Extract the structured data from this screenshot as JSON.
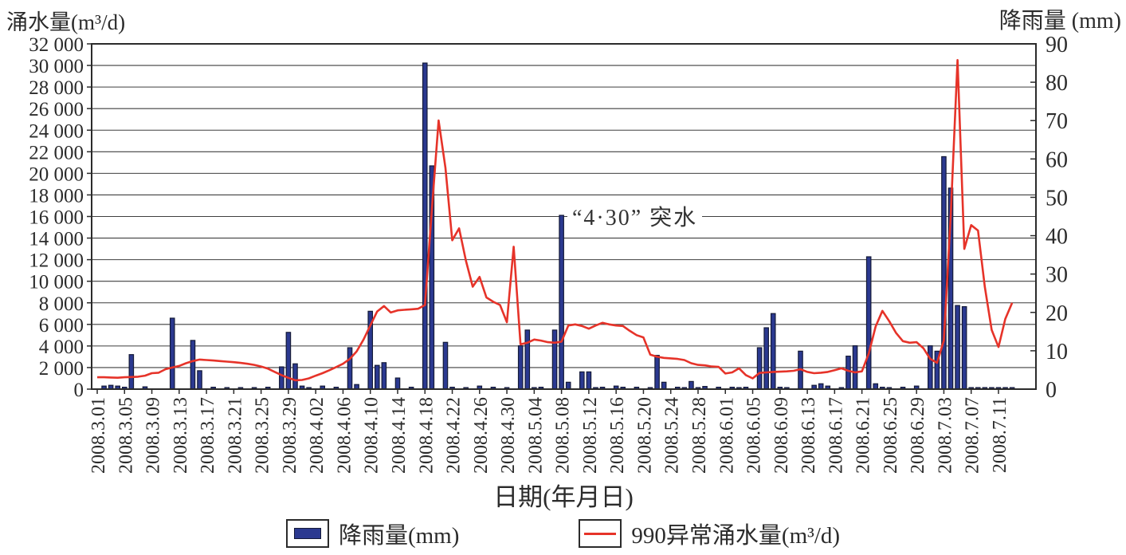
{
  "titles": {
    "left_axis": "涌水量(m³/d)",
    "right_axis": "降雨量 (mm)",
    "x_axis": "日期(年月日)"
  },
  "annotation": "“4·30” 突水",
  "legend": {
    "items": [
      {
        "label": "降雨量(mm)",
        "type": "bar",
        "color": "#2b3990"
      },
      {
        "label": "990异常涌水量(m³/d)",
        "type": "line",
        "color": "#e63329"
      }
    ]
  },
  "colors": {
    "bar_fill": "#2b3990",
    "bar_stroke": "#141a38",
    "line": "#e63329",
    "grid": "#3f3f3f",
    "axis": "#2b2b2b"
  },
  "chart_data": {
    "type": "combo",
    "x_start_date": "2008.3.01",
    "x_end_date": "2008.7.13",
    "x_tick_every_days": 4,
    "x_tick_labels": [
      "2008.3.01",
      "2008.3.05",
      "2008.3.09",
      "2008.3.13",
      "2008.3.17",
      "2008.3.21",
      "2008.3.25",
      "2008.3.29",
      "2008.4.02",
      "2008.4.06",
      "2008.4.10",
      "2008.4.14",
      "2008.4.18",
      "2008.4.22",
      "2008.4.26",
      "2008.4.30",
      "2008.5.04",
      "2008.5.08",
      "2008.5.12",
      "2008.5.16",
      "2008.5.20",
      "2008.5.24",
      "2008.5.28",
      "2008.6.01",
      "2008.6.05",
      "2008.6.09",
      "2008.6.13",
      "2008.6.17",
      "2008.6.21",
      "2008.6.25",
      "2008.6.29",
      "2008.7.03",
      "2008.7.07",
      "2008.7.11"
    ],
    "left_axis": {
      "label": "涌水量(m³/d)",
      "min": 0,
      "max": 32000,
      "step": 2000
    },
    "right_axis": {
      "label": "降雨量(mm)",
      "min": 0,
      "max": 90,
      "step": 10
    },
    "grid": "horizontal",
    "legend_position": "bottom",
    "series": [
      {
        "name": "降雨量(mm)",
        "type": "bar",
        "axis": "right",
        "unit": "mm",
        "values": [
          0,
          0.8,
          1.0,
          0.8,
          0.5,
          9.0,
          0,
          0.6,
          0,
          0,
          0,
          18.5,
          0,
          0,
          12.7,
          4.8,
          0,
          0.5,
          0,
          0.4,
          0,
          0.4,
          0,
          0.4,
          0,
          0.5,
          0,
          5.8,
          14.8,
          6.6,
          0.8,
          0.4,
          0,
          0.8,
          0,
          0.5,
          0,
          10.8,
          1.2,
          0,
          20.3,
          6.2,
          6.9,
          0,
          2.9,
          0,
          0.5,
          0,
          85.0,
          58.2,
          0,
          12.2,
          0.5,
          0,
          0.4,
          0,
          0.8,
          0,
          0.5,
          0,
          0.4,
          0,
          11.3,
          15.4,
          0.4,
          0.5,
          0,
          15.4,
          45.3,
          1.8,
          0,
          4.5,
          4.5,
          0.4,
          0.5,
          0,
          0.8,
          0.5,
          0,
          0.5,
          0,
          0.4,
          8.8,
          1.8,
          0,
          0.5,
          0.4,
          2.0,
          0.4,
          0.7,
          0,
          0.5,
          0,
          0.5,
          0.4,
          0.5,
          0,
          10.8,
          16.0,
          19.7,
          0.5,
          0.4,
          0,
          9.9,
          0,
          1.0,
          1.4,
          0.8,
          0,
          0.4,
          8.6,
          11.3,
          0,
          34.5,
          1.4,
          0.5,
          0.4,
          0,
          0.5,
          0,
          0.8,
          0,
          11.3,
          9.9,
          60.6,
          52.4,
          21.8,
          21.5,
          0.4,
          0.4,
          0.4,
          0.4,
          0.4,
          0.4,
          0.4
        ]
      },
      {
        "name": "990异常涌水量(m³/d)",
        "type": "line",
        "axis": "left",
        "unit": "m³/d",
        "values": [
          1100,
          1100,
          1080,
          1060,
          1100,
          1120,
          1150,
          1250,
          1480,
          1520,
          1850,
          2000,
          2150,
          2400,
          2600,
          2740,
          2700,
          2650,
          2600,
          2550,
          2500,
          2430,
          2350,
          2250,
          2100,
          1900,
          1600,
          1300,
          1050,
          820,
          850,
          1000,
          1250,
          1480,
          1750,
          2050,
          2350,
          2800,
          3500,
          4600,
          5900,
          7200,
          7700,
          7100,
          7300,
          7350,
          7400,
          7450,
          7800,
          16500,
          24900,
          20500,
          13800,
          14900,
          11900,
          9500,
          10400,
          8500,
          8100,
          7800,
          6200,
          13200,
          4150,
          4300,
          4600,
          4500,
          4350,
          4300,
          4400,
          5900,
          6000,
          5850,
          5600,
          5900,
          6150,
          6000,
          5900,
          5850,
          5400,
          5000,
          4800,
          3200,
          3000,
          2900,
          2850,
          2800,
          2700,
          2400,
          2250,
          2200,
          2100,
          2070,
          1450,
          1550,
          1930,
          1300,
          1000,
          1500,
          1550,
          1600,
          1620,
          1650,
          1700,
          1850,
          1600,
          1480,
          1520,
          1600,
          1750,
          1930,
          1700,
          1550,
          1650,
          3300,
          5800,
          7260,
          6300,
          5200,
          4450,
          4300,
          4350,
          3800,
          2810,
          2440,
          4500,
          16000,
          30500,
          13000,
          15200,
          14700,
          9500,
          5500,
          3900,
          6500,
          8000
        ]
      }
    ],
    "annotation": {
      "text": "“4·30” 突水"
    }
  }
}
